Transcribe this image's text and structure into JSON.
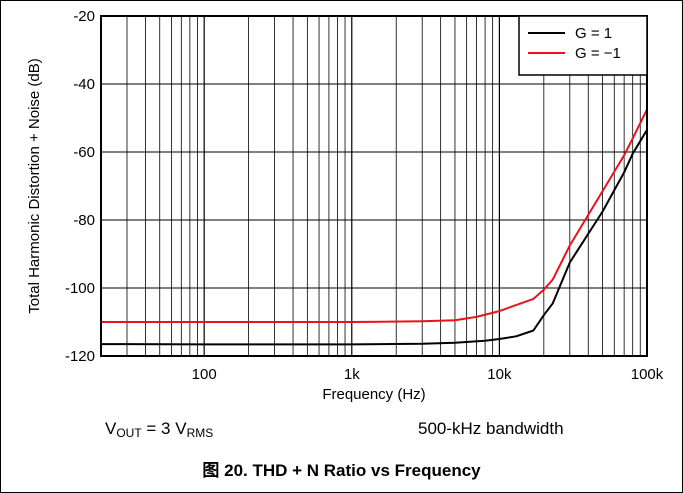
{
  "chart_data": {
    "type": "line",
    "xscale": "log",
    "xlim": [
      20,
      100000
    ],
    "ylim": [
      -120,
      -20
    ],
    "xlabel": "Frequency (Hz)",
    "ylabel": "Total Harmonic Distortion + Noise (dB)",
    "x_tick_labels": [
      "100",
      "1k",
      "10k",
      "100k"
    ],
    "x_tick_values": [
      100,
      1000,
      10000,
      100000
    ],
    "y_ticks": [
      -20,
      -40,
      -60,
      -80,
      -100,
      -120
    ],
    "grid": true,
    "legend_position": "top-right",
    "series": [
      {
        "name": "G = 1",
        "color": "#000000",
        "points": [
          [
            20,
            -116.5
          ],
          [
            100,
            -116.6
          ],
          [
            1000,
            -116.6
          ],
          [
            3000,
            -116.4
          ],
          [
            5000,
            -116.1
          ],
          [
            8000,
            -115.5
          ],
          [
            10000,
            -115.0
          ],
          [
            13000,
            -114.2
          ],
          [
            17000,
            -112.5
          ],
          [
            20000,
            -108
          ],
          [
            23000,
            -104.5
          ],
          [
            30000,
            -92.5
          ],
          [
            50000,
            -77.5
          ],
          [
            70000,
            -66
          ],
          [
            80000,
            -60.5
          ],
          [
            100000,
            -53.5
          ]
        ]
      },
      {
        "name": "G = −1",
        "color": "#e8141b",
        "points": [
          [
            20,
            -110
          ],
          [
            100,
            -110
          ],
          [
            1000,
            -110
          ],
          [
            3000,
            -109.8
          ],
          [
            5000,
            -109.5
          ],
          [
            7000,
            -108.5
          ],
          [
            10000,
            -106.8
          ],
          [
            14000,
            -104.5
          ],
          [
            17000,
            -103.2
          ],
          [
            20000,
            -100.5
          ],
          [
            23000,
            -97.5
          ],
          [
            30000,
            -87.5
          ],
          [
            50000,
            -71.5
          ],
          [
            70000,
            -61
          ],
          [
            80000,
            -56
          ],
          [
            100000,
            -47.5
          ]
        ]
      }
    ]
  },
  "annotations": {
    "vout_prefix": "V",
    "vout_sub": "OUT",
    "vout_mid": " = 3 V",
    "vout_unit_sub": "RMS",
    "bandwidth": "500-kHz bandwidth"
  },
  "caption": "图 20. THD + N Ratio vs Frequency"
}
